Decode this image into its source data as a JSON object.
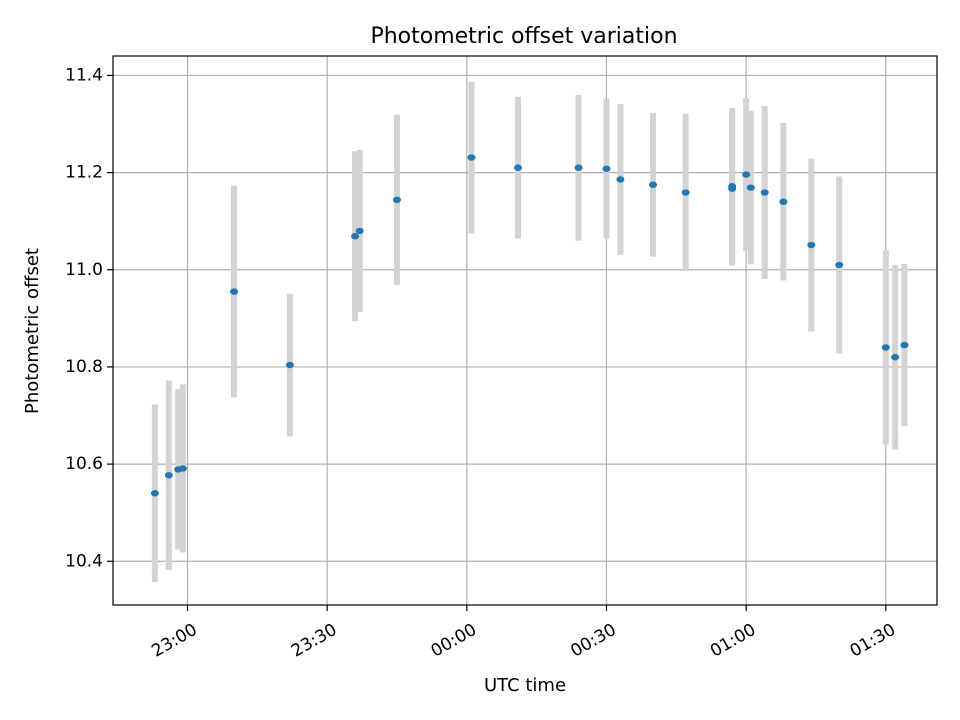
{
  "chart_data": {
    "type": "scatter",
    "title": "Photometric offset variation",
    "xlabel": "UTC time",
    "ylabel": "Photometric offset",
    "x_ticks": [
      "23:00",
      "23:30",
      "00:00",
      "00:30",
      "01:00",
      "01:30"
    ],
    "y_ticks": [
      "10.4",
      "10.6",
      "10.8",
      "11.0",
      "11.2",
      "11.4"
    ],
    "xlim": [
      "22:44",
      "01:41"
    ],
    "ylim": [
      10.31,
      11.44
    ],
    "grid": true,
    "colors": {
      "point": "#1f77b4",
      "errorbar": "#d3d3d3",
      "grid": "#b0b0b0"
    },
    "points": [
      {
        "x": "22:53",
        "y": 10.54,
        "err": 0.183
      },
      {
        "x": "22:56",
        "y": 10.577,
        "err": 0.195
      },
      {
        "x": "22:58",
        "y": 10.589,
        "err": 0.165
      },
      {
        "x": "22:59",
        "y": 10.591,
        "err": 0.173
      },
      {
        "x": "23:10",
        "y": 10.955,
        "err": 0.218
      },
      {
        "x": "23:22",
        "y": 10.804,
        "err": 0.147
      },
      {
        "x": "23:36",
        "y": 11.069,
        "err": 0.175
      },
      {
        "x": "23:37",
        "y": 11.08,
        "err": 0.167
      },
      {
        "x": "23:45",
        "y": 11.144,
        "err": 0.175
      },
      {
        "x": "00:01",
        "y": 11.231,
        "err": 0.156
      },
      {
        "x": "00:11",
        "y": 11.21,
        "err": 0.146
      },
      {
        "x": "00:24",
        "y": 11.21,
        "err": 0.15
      },
      {
        "x": "00:30",
        "y": 11.208,
        "err": 0.144
      },
      {
        "x": "00:33",
        "y": 11.186,
        "err": 0.155
      },
      {
        "x": "00:40",
        "y": 11.175,
        "err": 0.148
      },
      {
        "x": "00:47",
        "y": 11.159,
        "err": 0.162
      },
      {
        "x": "00:57",
        "y": 11.172,
        "err": 0.161
      },
      {
        "x": "00:57",
        "y": 11.167,
        "err": 0.158
      },
      {
        "x": "01:00",
        "y": 11.196,
        "err": 0.157
      },
      {
        "x": "01:01",
        "y": 11.169,
        "err": 0.158
      },
      {
        "x": "01:04",
        "y": 11.159,
        "err": 0.178
      },
      {
        "x": "01:08",
        "y": 11.14,
        "err": 0.162
      },
      {
        "x": "01:14",
        "y": 11.051,
        "err": 0.178
      },
      {
        "x": "01:20",
        "y": 11.01,
        "err": 0.182
      },
      {
        "x": "01:30",
        "y": 10.84,
        "err": 0.2
      },
      {
        "x": "01:32",
        "y": 10.82,
        "err": 0.19
      },
      {
        "x": "01:34",
        "y": 10.845,
        "err": 0.167
      }
    ]
  }
}
